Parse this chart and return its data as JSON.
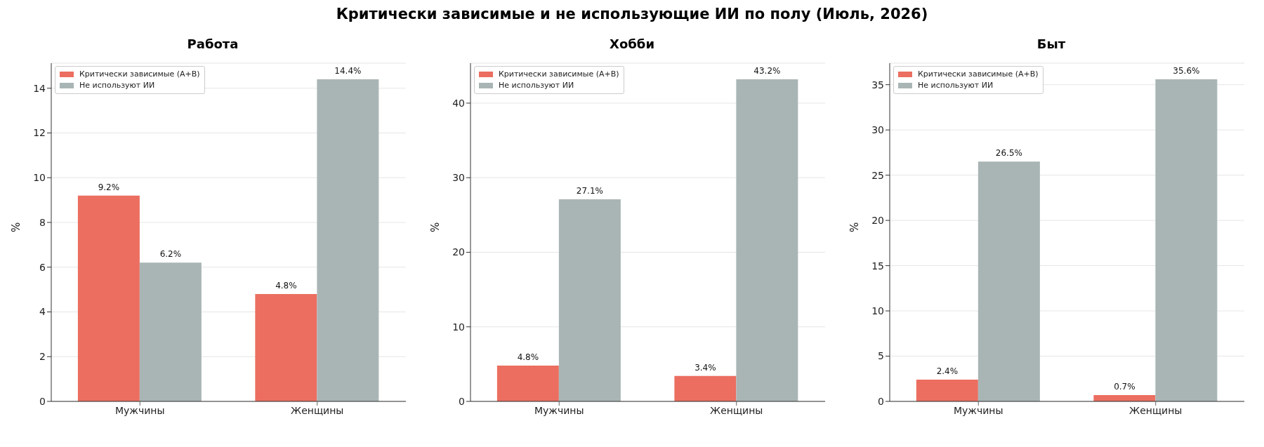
{
  "chart_data": [
    {
      "type": "bar",
      "title": "Работа",
      "ylabel": "%",
      "annotations": [
        "Критически зависимые и не использующие ИИ по полу (Июль, 2026)"
      ],
      "categories": [
        "Мужчины",
        "Женщины"
      ],
      "series": [
        {
          "name": "Критически зависимые (A+B)",
          "color": "#eb6e60",
          "values": [
            9.2,
            4.8
          ],
          "value_labels": [
            "9.2%",
            "4.8%"
          ]
        },
        {
          "name": "Не используют ИИ",
          "color": "#a9b5b5",
          "values": [
            6.2,
            14.4
          ],
          "value_labels": [
            "6.2%",
            "14.4%"
          ]
        }
      ],
      "ylim": [
        0,
        15.12
      ],
      "yticks": [
        0,
        2,
        4,
        6,
        8,
        10,
        12,
        14
      ],
      "grid": "y",
      "legend": "top left"
    },
    {
      "type": "bar",
      "title": "Хобби",
      "ylabel": "%",
      "categories": [
        "Мужчины",
        "Женщины"
      ],
      "series": [
        {
          "name": "Критически зависимые (A+B)",
          "color": "#eb6e60",
          "values": [
            4.8,
            3.4
          ],
          "value_labels": [
            "4.8%",
            "3.4%"
          ]
        },
        {
          "name": "Не используют ИИ",
          "color": "#a9b5b5",
          "values": [
            27.1,
            43.2
          ],
          "value_labels": [
            "27.1%",
            "43.2%"
          ]
        }
      ],
      "ylim": [
        0,
        45.36
      ],
      "yticks": [
        0,
        10,
        20,
        30,
        40
      ],
      "grid": "y",
      "legend": "top left"
    },
    {
      "type": "bar",
      "title": "Быт",
      "ylabel": "%",
      "categories": [
        "Мужчины",
        "Женщины"
      ],
      "series": [
        {
          "name": "Критически зависимые (A+B)",
          "color": "#eb6e60",
          "values": [
            2.4,
            0.7
          ],
          "value_labels": [
            "2.4%",
            "0.7%"
          ]
        },
        {
          "name": "Не используют ИИ",
          "color": "#a9b5b5",
          "values": [
            26.5,
            35.6
          ],
          "value_labels": [
            "26.5%",
            "35.6%"
          ]
        }
      ],
      "ylim": [
        0,
        37.38
      ],
      "yticks": [
        0,
        5,
        10,
        15,
        20,
        25,
        30,
        35
      ],
      "grid": "y",
      "legend": "top left"
    }
  ]
}
